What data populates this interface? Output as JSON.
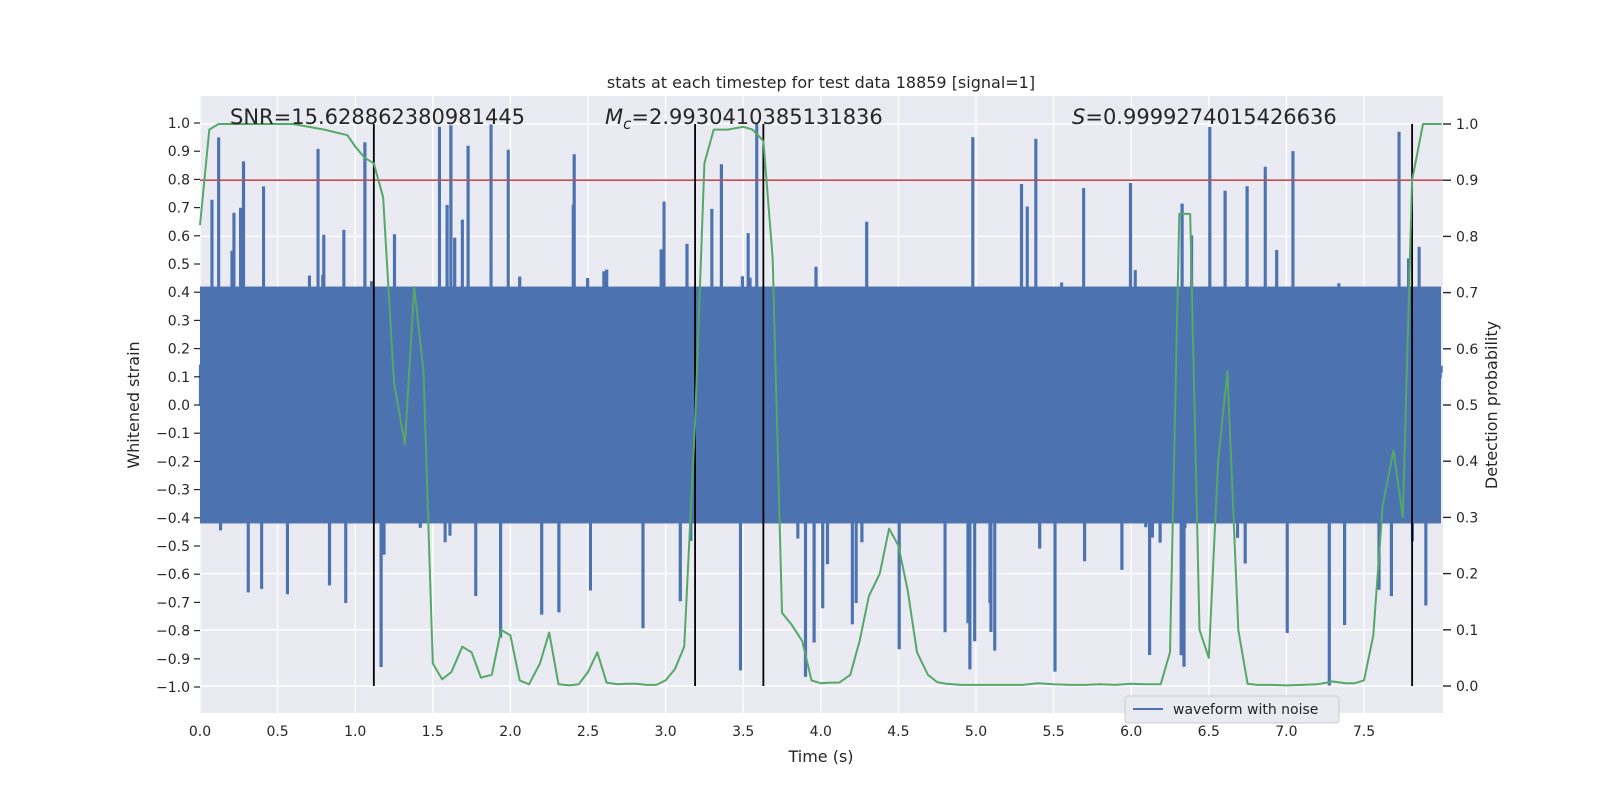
{
  "chart_data": {
    "type": "line",
    "title": "stats at each timestep for test data 18859 [signal=1]",
    "xlabel": "Time (s)",
    "ylabel_left": "Whitened strain",
    "ylabel_right": "Detection probability",
    "xlim": [
      0,
      8
    ],
    "ylim_left": [
      -1.1,
      1.1
    ],
    "ylim_right": [
      -0.05,
      1.0
    ],
    "x_ticks": [
      "0.0",
      "0.5",
      "1.0",
      "1.5",
      "2.0",
      "2.5",
      "3.0",
      "3.5",
      "4.0",
      "4.5",
      "5.0",
      "5.5",
      "6.0",
      "6.5",
      "7.0",
      "7.5"
    ],
    "y_left_ticks": [
      "1.0",
      "0.9",
      "0.8",
      "0.7",
      "0.6",
      "0.5",
      "0.4",
      "0.3",
      "0.2",
      "0.1",
      "0.0",
      "−0.1",
      "−0.2",
      "−0.3",
      "−0.4",
      "−0.5",
      "−0.6",
      "−0.7",
      "−0.8",
      "−0.9",
      "−1.0"
    ],
    "y_right_ticks": [
      "1.0",
      "0.9",
      "0.8",
      "0.7",
      "0.6",
      "0.5",
      "0.4",
      "0.3",
      "0.2",
      "0.1",
      "0.0"
    ],
    "annotations": {
      "snr_label": "SNR=15.628862380981445",
      "mc_symbol": "M",
      "mc_subscript": "c",
      "mc_value": "=2.9930410385131836",
      "s_symbol": "S",
      "s_value": "=0.9999274015426636"
    },
    "threshold_right": 0.9,
    "vertical_lines_x": [
      1.12,
      3.19,
      3.63,
      7.81
    ],
    "legend": {
      "label": "waveform with noise",
      "position": "lower-right"
    },
    "series": [
      {
        "name": "waveform with noise",
        "axis": "left",
        "style": "dense-noise",
        "description_range": [
          -1.0,
          1.0
        ]
      },
      {
        "name": "detection probability",
        "axis": "right",
        "x": [
          0.0,
          0.06,
          0.12,
          0.2,
          0.4,
          0.6,
          0.8,
          0.95,
          1.0,
          1.06,
          1.12,
          1.18,
          1.25,
          1.32,
          1.38,
          1.44,
          1.5,
          1.56,
          1.62,
          1.69,
          1.75,
          1.81,
          1.88,
          1.94,
          2.0,
          2.06,
          2.12,
          2.19,
          2.25,
          2.31,
          2.38,
          2.44,
          2.5,
          2.56,
          2.62,
          2.69,
          2.75,
          2.81,
          2.88,
          2.94,
          3.0,
          3.06,
          3.12,
          3.19,
          3.25,
          3.31,
          3.4,
          3.5,
          3.56,
          3.63,
          3.69,
          3.75,
          3.81,
          3.88,
          3.94,
          4.0,
          4.06,
          4.12,
          4.19,
          4.25,
          4.31,
          4.38,
          4.44,
          4.5,
          4.56,
          4.62,
          4.69,
          4.75,
          4.81,
          4.9,
          5.0,
          5.1,
          5.2,
          5.3,
          5.4,
          5.5,
          5.6,
          5.7,
          5.8,
          5.9,
          6.0,
          6.1,
          6.19,
          6.25,
          6.31,
          6.38,
          6.44,
          6.5,
          6.56,
          6.62,
          6.69,
          6.75,
          6.81,
          6.9,
          7.0,
          7.1,
          7.2,
          7.3,
          7.38,
          7.44,
          7.5,
          7.56,
          7.62,
          7.69,
          7.75,
          7.81,
          7.88,
          7.94,
          8.0
        ],
        "values": [
          0.82,
          0.99,
          1.0,
          1.0,
          1.0,
          1.0,
          0.99,
          0.98,
          0.96,
          0.94,
          0.93,
          0.87,
          0.54,
          0.43,
          0.71,
          0.56,
          0.04,
          0.012,
          0.025,
          0.07,
          0.06,
          0.015,
          0.02,
          0.1,
          0.09,
          0.01,
          0.003,
          0.04,
          0.095,
          0.003,
          0.001,
          0.003,
          0.025,
          0.06,
          0.006,
          0.003,
          0.004,
          0.004,
          0.002,
          0.002,
          0.01,
          0.03,
          0.07,
          0.47,
          0.93,
          0.99,
          0.99,
          0.995,
          0.99,
          0.97,
          0.76,
          0.13,
          0.11,
          0.08,
          0.01,
          0.005,
          0.006,
          0.006,
          0.02,
          0.08,
          0.16,
          0.2,
          0.28,
          0.25,
          0.17,
          0.06,
          0.02,
          0.007,
          0.004,
          0.002,
          0.002,
          0.002,
          0.002,
          0.002,
          0.005,
          0.003,
          0.002,
          0.002,
          0.003,
          0.002,
          0.004,
          0.003,
          0.003,
          0.06,
          0.84,
          0.84,
          0.1,
          0.05,
          0.4,
          0.56,
          0.1,
          0.004,
          0.002,
          0.002,
          0.001,
          0.002,
          0.003,
          0.008,
          0.005,
          0.005,
          0.01,
          0.09,
          0.32,
          0.42,
          0.3,
          0.9,
          1.0,
          1.0,
          1.0
        ]
      }
    ]
  }
}
